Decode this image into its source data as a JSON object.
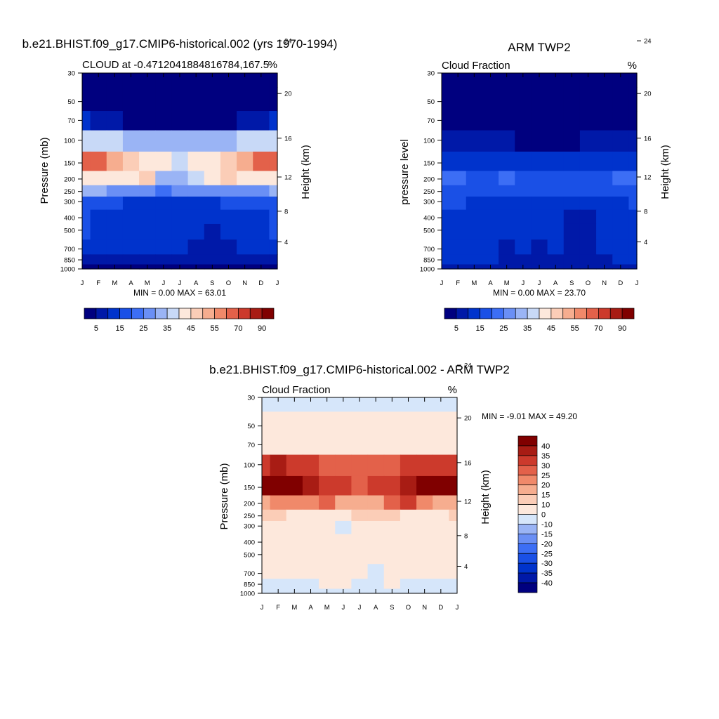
{
  "axes": {
    "months": [
      "J",
      "F",
      "M",
      "A",
      "M",
      "J",
      "J",
      "A",
      "S",
      "O",
      "N",
      "D",
      "J"
    ],
    "pressure_ticks": [
      30,
      50,
      70,
      100,
      150,
      200,
      250,
      300,
      400,
      500,
      700,
      850,
      1000
    ],
    "height_ticks": [
      24,
      20,
      16,
      12,
      8,
      4
    ]
  },
  "panel_model": {
    "title": "b.e21.BHIST.f09_g17.CMIP6-historical.002 (yrs 1970-1994)",
    "left_string": "CLOUD at -0.4712041884816784,167.5",
    "right_string": "%",
    "ylabel_left": "Pressure (mb)",
    "ylabel_right": "Height (km)",
    "minmax": "MIN =   0.00 MAX =  63.01"
  },
  "panel_obs": {
    "title": "ARM TWP2",
    "left_string": "Cloud Fraction",
    "right_string": "%",
    "ylabel_left": "pressure level",
    "ylabel_right": "Height (km)",
    "minmax": "MIN =   0.00 MAX =  23.70"
  },
  "panel_diff": {
    "title": "b.e21.BHIST.f09_g17.CMIP6-historical.002 - ARM TWP2",
    "left_string": "Cloud Fraction",
    "right_string": "%",
    "ylabel_left": "Pressure (mb)",
    "ylabel_right": "Height (km)",
    "minmax": "MIN =  -9.01 MAX =  49.20"
  },
  "colorbar_abs": {
    "colors": [
      "#00007f",
      "#0019a8",
      "#0033cc",
      "#1a50e6",
      "#3c6ef5",
      "#6a8ff5",
      "#9ab4f5",
      "#c8d9f7",
      "#fde8dc",
      "#fbcdb7",
      "#f6ad8f",
      "#f0896a",
      "#e3614a",
      "#cc3a2c",
      "#a81c14",
      "#800000"
    ],
    "labels": [
      "5",
      "15",
      "25",
      "35",
      "45",
      "55",
      "70",
      "90"
    ]
  },
  "colorbar_diff": {
    "colors": [
      "#800000",
      "#a81c14",
      "#cc3a2c",
      "#e3614a",
      "#f0896a",
      "#f6ad8f",
      "#fbcdb7",
      "#fde8dc",
      "#d6e6fa",
      "#9ab4f5",
      "#6a8ff5",
      "#3c6ef5",
      "#1a50e6",
      "#0033cc",
      "#0019a8",
      "#00007f"
    ],
    "labels": [
      "40",
      "35",
      "30",
      "25",
      "20",
      "15",
      "10",
      "0",
      "-10",
      "-15",
      "-20",
      "-25",
      "-30",
      "-35",
      "-40"
    ]
  },
  "chart_data": [
    {
      "type": "heatmap",
      "title": "b.e21.BHIST.f09_g17.CMIP6-historical.002 (yrs 1970-1994)",
      "subtitle": "CLOUD at -0.4712041884816784,167.5",
      "x": [
        "J",
        "F",
        "M",
        "A",
        "M",
        "J",
        "J",
        "A",
        "S",
        "O",
        "N",
        "D",
        "J"
      ],
      "y": [
        30,
        50,
        70,
        100,
        150,
        200,
        250,
        300,
        400,
        500,
        700,
        850,
        1000
      ],
      "xlabel": "",
      "ylabel": "Pressure (mb)",
      "ylabel_right": "Height (km)",
      "y_scale": "log",
      "units": "%",
      "min": 0.0,
      "max": 63.01,
      "values": [
        [
          0,
          0,
          0,
          0,
          0,
          0,
          0,
          0,
          0,
          0,
          0,
          0,
          0
        ],
        [
          1,
          1,
          1,
          1,
          1,
          1,
          1,
          1,
          1,
          1,
          1,
          1,
          1
        ],
        [
          10,
          9,
          6,
          4,
          3,
          3,
          3,
          3,
          3,
          4,
          5,
          8,
          10
        ],
        [
          38,
          37,
          35,
          33,
          31,
          30,
          30,
          30,
          31,
          33,
          35,
          37,
          38
        ],
        [
          60,
          62,
          52,
          48,
          44,
          40,
          38,
          40,
          44,
          48,
          52,
          60,
          60
        ],
        [
          40,
          44,
          42,
          40,
          45,
          34,
          34,
          36,
          42,
          46,
          42,
          40,
          40
        ],
        [
          32,
          30,
          26,
          25,
          25,
          24,
          26,
          27,
          26,
          25,
          26,
          26,
          32
        ],
        [
          18,
          16,
          15,
          14,
          14,
          12,
          13,
          14,
          14,
          15,
          15,
          16,
          18
        ],
        [
          15,
          14,
          14,
          13,
          12,
          11,
          11,
          12,
          10,
          11,
          13,
          14,
          15
        ],
        [
          15,
          14,
          14,
          13,
          13,
          12,
          12,
          10,
          7,
          10,
          13,
          13,
          15
        ],
        [
          14,
          14,
          13,
          13,
          12,
          11,
          11,
          9,
          5,
          9,
          12,
          13,
          14
        ],
        [
          9,
          9,
          9,
          9,
          9,
          9,
          8,
          8,
          8,
          8,
          8,
          9,
          9
        ],
        [
          1,
          1,
          1,
          1,
          1,
          1,
          1,
          1,
          1,
          1,
          1,
          1,
          1
        ]
      ]
    },
    {
      "type": "heatmap",
      "title": "ARM TWP2",
      "subtitle": "Cloud Fraction",
      "x": [
        "J",
        "F",
        "M",
        "A",
        "M",
        "J",
        "J",
        "A",
        "S",
        "O",
        "N",
        "D",
        "J"
      ],
      "y": [
        30,
        50,
        70,
        100,
        150,
        200,
        250,
        300,
        400,
        500,
        700,
        850,
        1000
      ],
      "xlabel": "",
      "ylabel": "pressure level",
      "ylabel_right": "Height (km)",
      "y_scale": "log",
      "units": "%",
      "min": 0.0,
      "max": 23.7,
      "values": [
        [
          0,
          0,
          0,
          0,
          0,
          0,
          0,
          0,
          0,
          0,
          0,
          0,
          0
        ],
        [
          0,
          0,
          0,
          0,
          0,
          0,
          0,
          0,
          0,
          0,
          0,
          0,
          0
        ],
        [
          1,
          1,
          1,
          1,
          1,
          1,
          1,
          1,
          1,
          1,
          1,
          1,
          1
        ],
        [
          9,
          9,
          7,
          6,
          5,
          4,
          4,
          4,
          4,
          5,
          6,
          8,
          9
        ],
        [
          14,
          13,
          12,
          11,
          11,
          10,
          10,
          10,
          10,
          11,
          12,
          13,
          14
        ],
        [
          21,
          22,
          18,
          16,
          20,
          18,
          16,
          17,
          15,
          16,
          18,
          21,
          21
        ],
        [
          18,
          19,
          17,
          16,
          17,
          16,
          16,
          17,
          16,
          16,
          17,
          18,
          18
        ],
        [
          15,
          15,
          14,
          14,
          13,
          13,
          13,
          12,
          11,
          12,
          13,
          14,
          15
        ],
        [
          14,
          14,
          13,
          13,
          12,
          11,
          11,
          11,
          6,
          9,
          12,
          13,
          14
        ],
        [
          13,
          13,
          12,
          12,
          11,
          10,
          10,
          10,
          5,
          7,
          11,
          12,
          13
        ],
        [
          12,
          12,
          11,
          11,
          9,
          10,
          7,
          10,
          5,
          6,
          10,
          11,
          12
        ],
        [
          10,
          10,
          10,
          10,
          9,
          9,
          9,
          9,
          8,
          9,
          9,
          10,
          10
        ],
        [
          8,
          8,
          8,
          8,
          8,
          8,
          8,
          8,
          8,
          8,
          8,
          8,
          8
        ]
      ]
    },
    {
      "type": "heatmap",
      "title": "b.e21.BHIST.f09_g17.CMIP6-historical.002 - ARM TWP2",
      "subtitle": "Cloud Fraction",
      "x": [
        "J",
        "F",
        "M",
        "A",
        "M",
        "J",
        "J",
        "A",
        "S",
        "O",
        "N",
        "D",
        "J"
      ],
      "y": [
        30,
        50,
        70,
        100,
        150,
        200,
        250,
        300,
        400,
        500,
        700,
        850,
        1000
      ],
      "xlabel": "",
      "ylabel": "Pressure (mb)",
      "ylabel_right": "Height (km)",
      "y_scale": "log",
      "units": "%",
      "min": -9.01,
      "max": 49.2,
      "values": [
        [
          -1,
          -1,
          -1,
          -1,
          -1,
          -1,
          -1,
          -1,
          -1,
          -1,
          -1,
          -1,
          -1
        ],
        [
          1,
          1,
          1,
          1,
          1,
          1,
          1,
          1,
          1,
          1,
          1,
          1,
          1
        ],
        [
          9,
          8,
          5,
          3,
          2,
          2,
          2,
          2,
          2,
          3,
          4,
          7,
          9
        ],
        [
          32,
          36,
          32,
          30,
          28,
          26,
          26,
          26,
          27,
          30,
          31,
          34,
          32
        ],
        [
          46,
          49,
          42,
          37,
          33,
          30,
          28,
          30,
          34,
          37,
          40,
          47,
          46
        ],
        [
          19,
          22,
          24,
          24,
          25,
          16,
          18,
          19,
          27,
          30,
          24,
          19,
          19
        ],
        [
          14,
          11,
          9,
          9,
          8,
          8,
          10,
          10,
          10,
          9,
          9,
          8,
          14
        ],
        [
          3,
          1,
          1,
          0,
          1,
          -1,
          0,
          2,
          3,
          3,
          2,
          2,
          3
        ],
        [
          1,
          0,
          1,
          0,
          0,
          0,
          0,
          1,
          4,
          2,
          1,
          1,
          1
        ],
        [
          2,
          1,
          2,
          1,
          2,
          2,
          2,
          0,
          2,
          3,
          2,
          1,
          2
        ],
        [
          2,
          2,
          2,
          2,
          3,
          1,
          4,
          -1,
          0,
          3,
          2,
          2,
          2
        ],
        [
          -1,
          -1,
          -1,
          -1,
          0,
          0,
          -1,
          -1,
          0,
          -1,
          -1,
          -1,
          -1
        ],
        [
          -7,
          -7,
          -7,
          -7,
          -7,
          -7,
          -7,
          -7,
          -7,
          -7,
          -7,
          -7,
          -7
        ]
      ]
    }
  ]
}
